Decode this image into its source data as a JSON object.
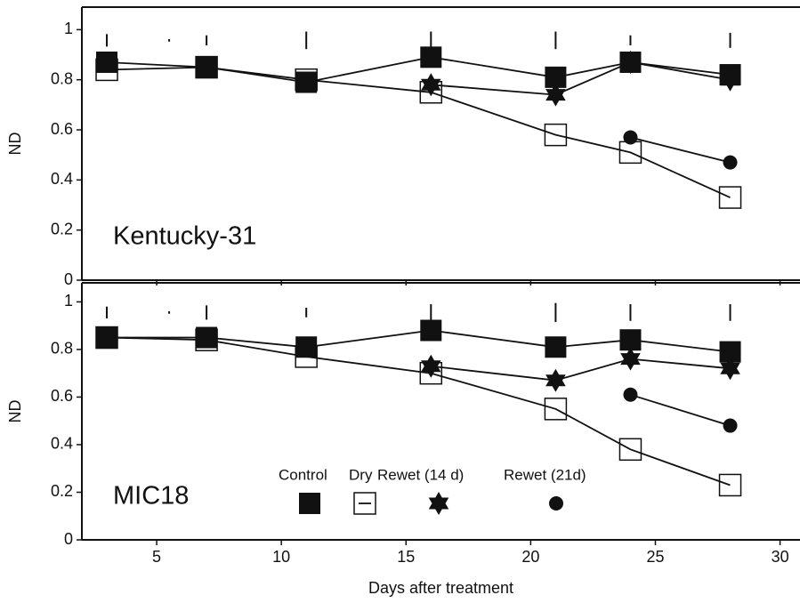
{
  "chart_data": [
    {
      "type": "line",
      "panel_label": "Kentucky-31",
      "ylabel": "ND",
      "x": [
        3,
        7,
        11,
        16,
        21,
        24,
        28
      ],
      "series": [
        {
          "name": "Control",
          "color": "#111111",
          "marker": "square",
          "values": [
            0.87,
            0.85,
            0.79,
            0.89,
            0.81,
            0.87,
            0.82
          ]
        },
        {
          "name": "Dry",
          "color": "#111111",
          "marker": "open-square",
          "values": [
            0.84,
            0.85,
            0.8,
            0.75,
            0.58,
            0.51,
            0.33
          ]
        },
        {
          "name": "Rewet (14 d)",
          "color": "#111111",
          "marker": "star",
          "values": [
            null,
            null,
            null,
            0.78,
            0.74,
            0.87,
            0.8
          ]
        },
        {
          "name": "Rewet (21d)",
          "color": "#111111",
          "marker": "circle",
          "values": [
            null,
            null,
            null,
            null,
            null,
            0.57,
            0.47
          ]
        }
      ],
      "lsd": {
        "x": [
          3,
          5.5,
          7,
          11,
          16,
          21,
          24,
          28
        ],
        "values": [
          0.05,
          0.01,
          0.04,
          0.07,
          0.07,
          0.07,
          0.04,
          0.06
        ]
      },
      "xlim": [
        2,
        30.8
      ],
      "xticks": [
        5,
        10,
        15,
        20,
        25,
        30
      ],
      "xtick_labels": false,
      "ylim": [
        0,
        1.09
      ],
      "yticks": [
        0,
        0.2,
        0.4,
        0.6,
        0.8,
        1
      ]
    },
    {
      "type": "line",
      "panel_label": "MIC18",
      "ylabel": "ND",
      "xlabel": "Days after treatment",
      "x": [
        3,
        7,
        11,
        16,
        21,
        24,
        28
      ],
      "series": [
        {
          "name": "Control",
          "color": "#111111",
          "marker": "square",
          "values": [
            0.85,
            0.85,
            0.81,
            0.88,
            0.81,
            0.84,
            0.79
          ]
        },
        {
          "name": "Dry",
          "color": "#111111",
          "marker": "open-square",
          "values": [
            0.85,
            0.84,
            0.77,
            0.7,
            0.55,
            0.38,
            0.23
          ]
        },
        {
          "name": "Rewet (14 d)",
          "color": "#111111",
          "marker": "star",
          "values": [
            null,
            null,
            null,
            0.73,
            0.67,
            0.76,
            0.72
          ]
        },
        {
          "name": "Rewet (21d)",
          "color": "#111111",
          "marker": "circle",
          "values": [
            null,
            null,
            null,
            null,
            null,
            0.61,
            0.48
          ]
        }
      ],
      "lsd": {
        "x": [
          3,
          5.5,
          7,
          11,
          16,
          21,
          24,
          28
        ],
        "values": [
          0.05,
          0.01,
          0.06,
          0.04,
          0.07,
          0.08,
          0.07,
          0.07
        ]
      },
      "xlim": [
        2,
        30.8
      ],
      "xticks": [
        5,
        10,
        15,
        20,
        25,
        30
      ],
      "xtick_labels": true,
      "ylim": [
        0,
        1.08
      ],
      "yticks": [
        0,
        0.2,
        0.4,
        0.6,
        0.8,
        1
      ],
      "legend": true
    }
  ]
}
